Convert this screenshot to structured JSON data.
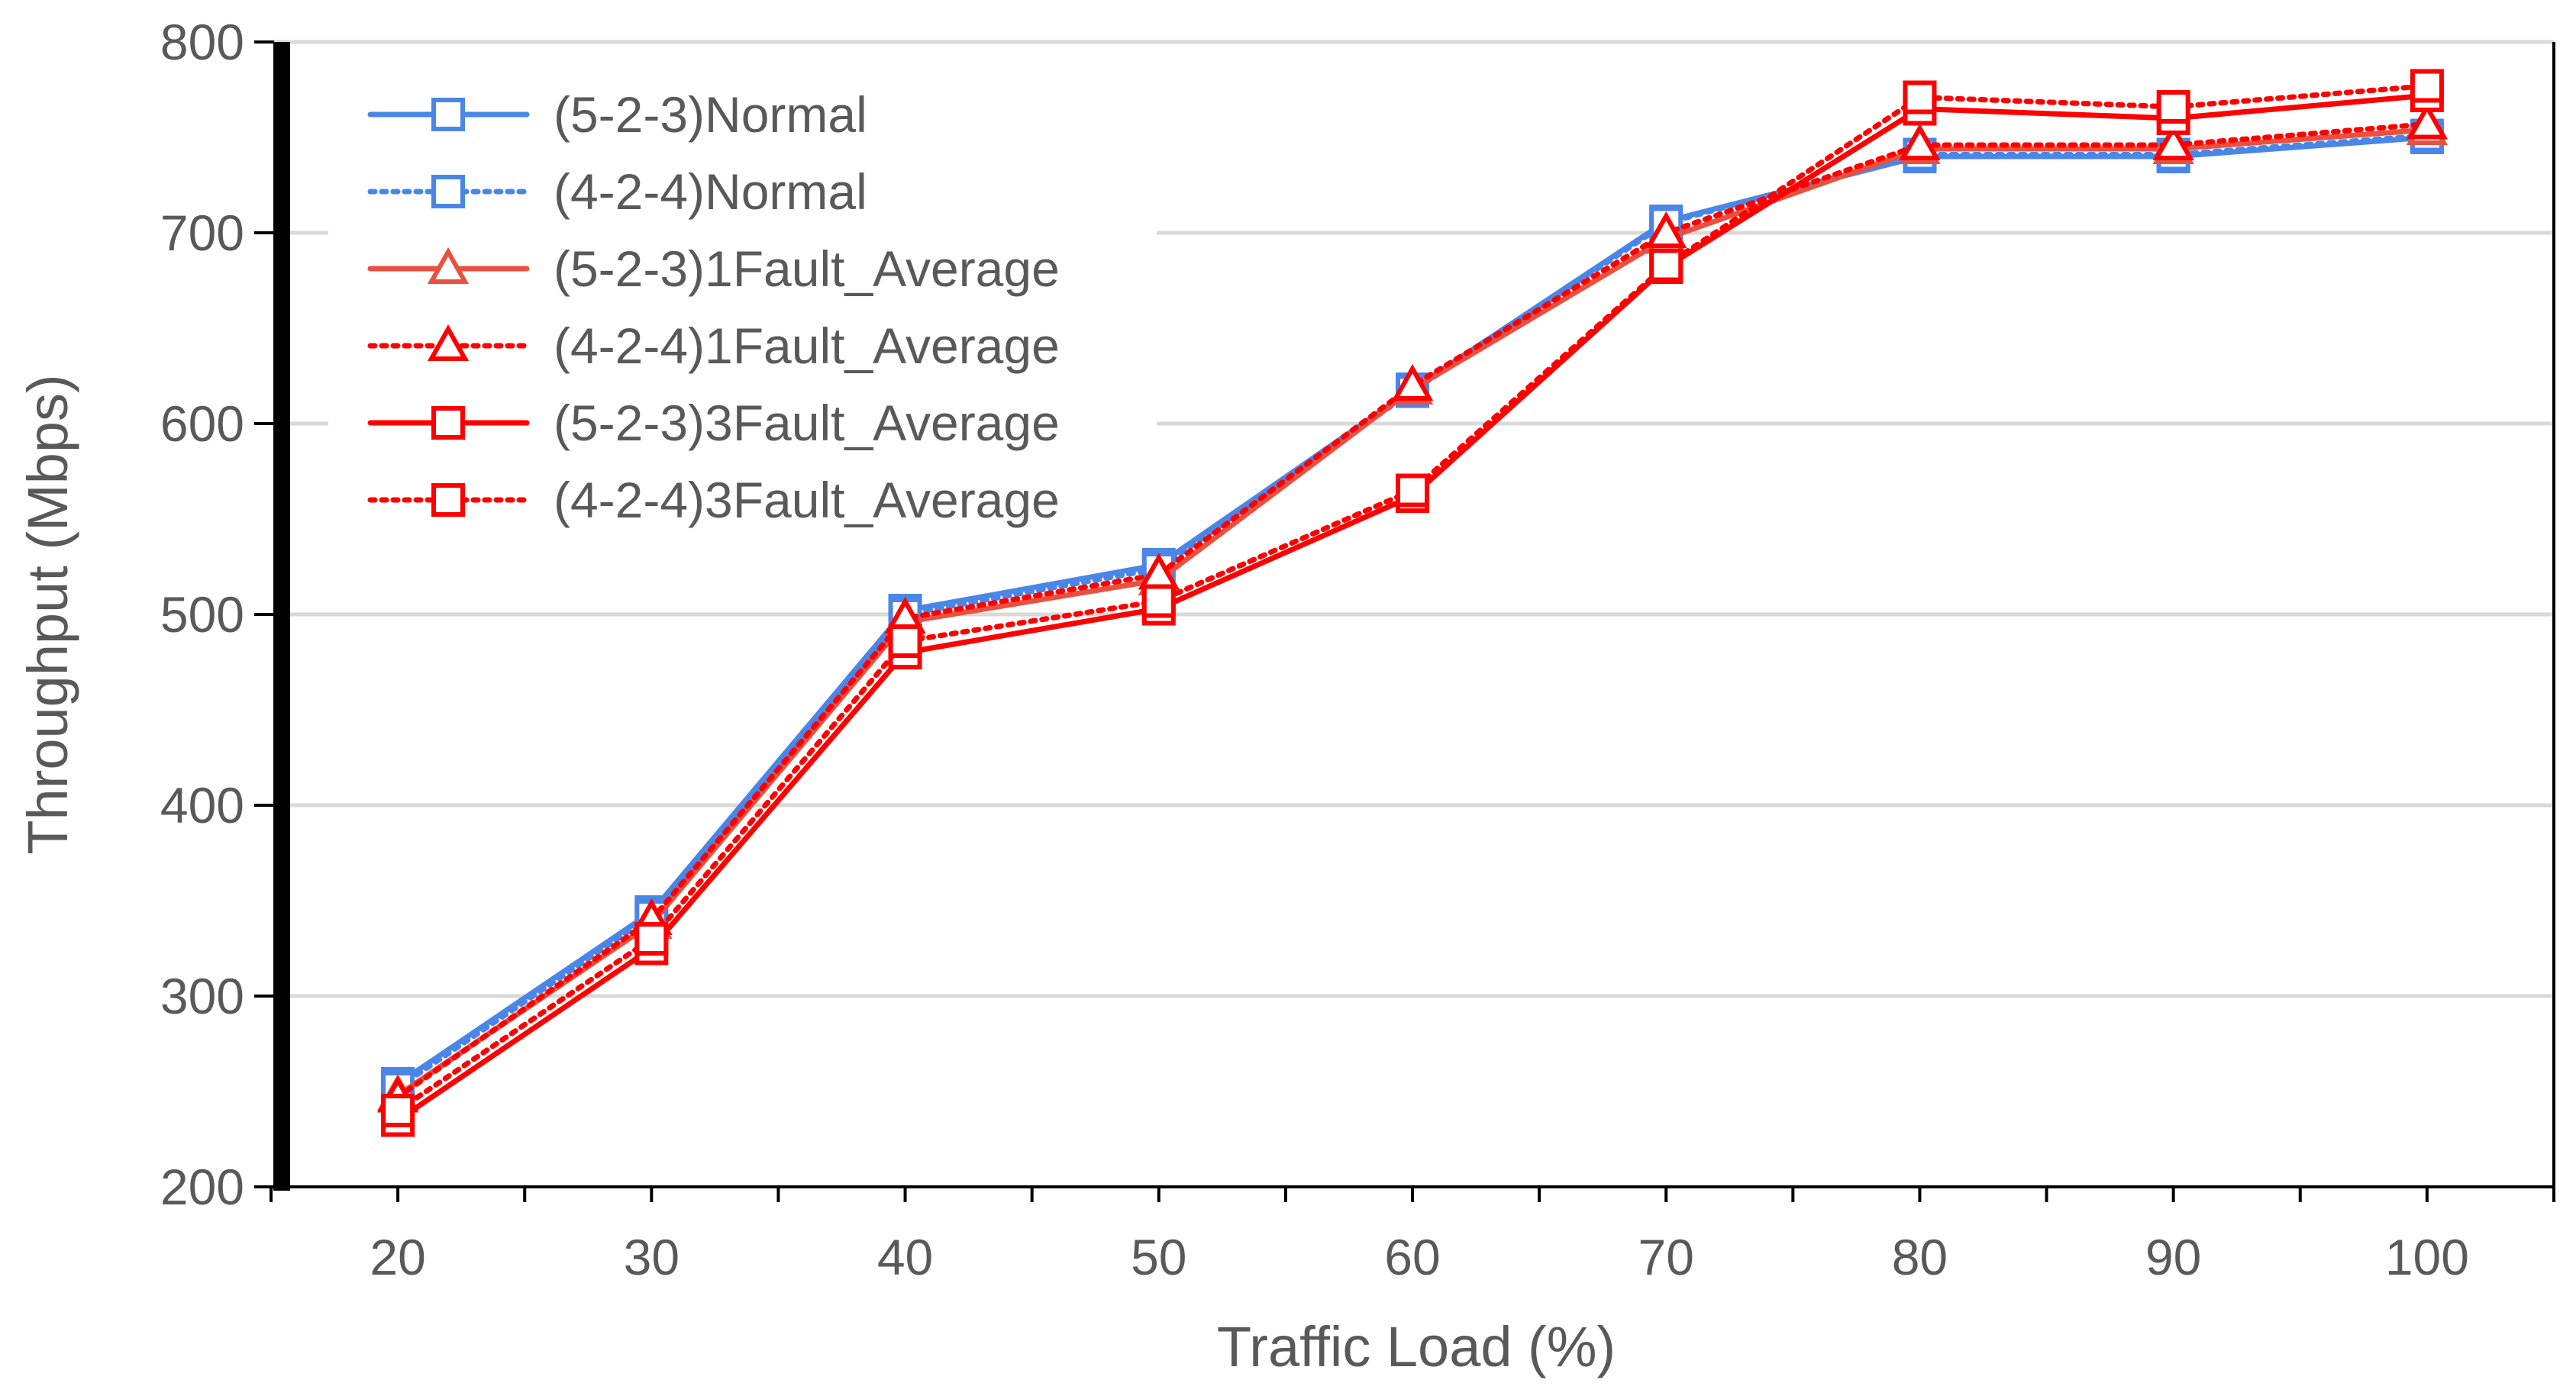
{
  "chart_data": {
    "type": "line",
    "title": "",
    "xlabel": "Traffic Load (%)",
    "ylabel": "Throughput (Mbps)",
    "x": [
      20,
      30,
      40,
      50,
      60,
      70,
      80,
      90,
      100
    ],
    "x_tick_labels": [
      "20",
      "30",
      "40",
      "50",
      "60",
      "70",
      "80",
      "90",
      "100"
    ],
    "ylim": [
      200,
      800
    ],
    "y_ticks": [
      200,
      300,
      400,
      500,
      600,
      700,
      800
    ],
    "y_tick_labels": [
      "200",
      "300",
      "400",
      "500",
      "600",
      "700",
      "800"
    ],
    "grid": "horizontal",
    "legend_position": "top-left",
    "series": [
      {
        "name": "(5-2-3)Normal",
        "color": "#4a86e8",
        "dash": "solid",
        "marker": "square",
        "values": [
          254,
          344,
          502,
          526,
          618,
          706,
          740,
          740,
          750
        ]
      },
      {
        "name": "(4-2-4)Normal",
        "color": "#4a86e8",
        "dash": "dotted",
        "marker": "square",
        "values": [
          252,
          342,
          500,
          524,
          617,
          705,
          741,
          741,
          751
        ]
      },
      {
        "name": "(5-2-3)1Fault_Average",
        "color": "#ea5040",
        "dash": "solid",
        "marker": "triangle",
        "values": [
          248,
          338,
          496,
          518,
          618,
          697,
          744,
          744,
          754
        ]
      },
      {
        "name": "(4-2-4)1Fault_Average",
        "color": "#ff0000",
        "dash": "dotted",
        "marker": "triangle",
        "values": [
          247,
          340,
          498,
          521,
          620,
          700,
          746,
          746,
          757
        ]
      },
      {
        "name": "(5-2-3)3Fault_Average",
        "color": "#ff0000",
        "dash": "solid",
        "marker": "square",
        "values": [
          235,
          325,
          480,
          503,
          562,
          682,
          765,
          760,
          772
        ]
      },
      {
        "name": "(4-2-4)3Fault_Average",
        "color": "#ff0000",
        "dash": "dotted",
        "marker": "square",
        "values": [
          240,
          330,
          486,
          507,
          565,
          683,
          771,
          766,
          777
        ]
      }
    ]
  }
}
